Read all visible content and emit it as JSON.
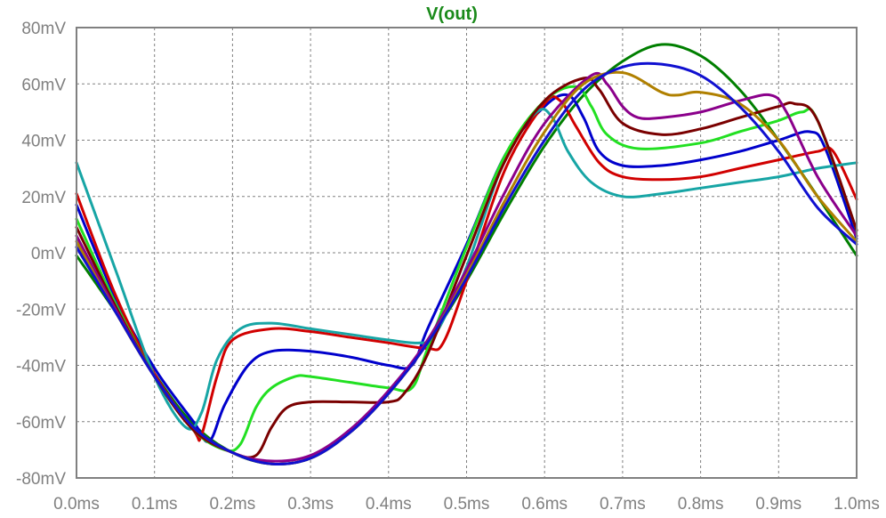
{
  "chart_data": {
    "type": "line",
    "title": "V(out)",
    "title_color": "#1a8a1a",
    "xlabel": "",
    "ylabel": "",
    "xlim": [
      0.0,
      1.0
    ],
    "ylim": [
      -80,
      80
    ],
    "x_ticks": [
      {
        "value": 0.0,
        "label": "0.0ms"
      },
      {
        "value": 0.1,
        "label": "0.1ms"
      },
      {
        "value": 0.2,
        "label": "0.2ms"
      },
      {
        "value": 0.3,
        "label": "0.3ms"
      },
      {
        "value": 0.4,
        "label": "0.4ms"
      },
      {
        "value": 0.5,
        "label": "0.5ms"
      },
      {
        "value": 0.6,
        "label": "0.6ms"
      },
      {
        "value": 0.7,
        "label": "0.7ms"
      },
      {
        "value": 0.8,
        "label": "0.8ms"
      },
      {
        "value": 0.9,
        "label": "0.9ms"
      },
      {
        "value": 1.0,
        "label": "1.0ms"
      }
    ],
    "y_ticks": [
      {
        "value": 80,
        "label": "80mV"
      },
      {
        "value": 60,
        "label": "60mV"
      },
      {
        "value": 40,
        "label": "40mV"
      },
      {
        "value": 20,
        "label": "20mV"
      },
      {
        "value": 0,
        "label": "0mV"
      },
      {
        "value": -20,
        "label": "-20mV"
      },
      {
        "value": -40,
        "label": "-40mV"
      },
      {
        "value": -60,
        "label": "-60mV"
      },
      {
        "value": -80,
        "label": "-80mV"
      }
    ],
    "grid": true,
    "series": [
      {
        "color": "#007f00",
        "x": [
          0.0,
          0.05,
          0.1,
          0.15,
          0.2,
          0.25,
          0.3,
          0.35,
          0.4,
          0.45,
          0.5,
          0.55,
          0.6,
          0.65,
          0.7,
          0.75,
          0.8,
          0.85,
          0.9,
          0.95,
          1.0
        ],
        "y": [
          -1,
          -21,
          -43,
          -61,
          -71,
          -75,
          -73,
          -64,
          -50,
          -32,
          -10,
          15,
          38,
          56,
          68,
          74,
          70,
          58,
          40,
          20,
          -1
        ]
      },
      {
        "color": "#0000cc",
        "x": [
          0.0,
          0.05,
          0.1,
          0.15,
          0.17,
          0.19,
          0.22,
          0.25,
          0.3,
          0.35,
          0.4,
          0.43,
          0.45,
          0.5,
          0.55,
          0.6,
          0.63,
          0.65,
          0.67,
          0.7,
          0.75,
          0.8,
          0.85,
          0.9,
          0.94,
          0.96,
          1.0
        ],
        "y": [
          17,
          -16,
          -41,
          -60,
          -67,
          -54,
          -40,
          -35,
          -35,
          -37,
          -40,
          -40,
          -27,
          3,
          35,
          52,
          56,
          48,
          36,
          31,
          31,
          33,
          36,
          40,
          43,
          37,
          5
        ]
      },
      {
        "color": "#d10000",
        "x": [
          0.0,
          0.05,
          0.1,
          0.15,
          0.16,
          0.18,
          0.2,
          0.25,
          0.3,
          0.35,
          0.4,
          0.45,
          0.47,
          0.5,
          0.55,
          0.6,
          0.62,
          0.64,
          0.67,
          0.7,
          0.75,
          0.8,
          0.85,
          0.9,
          0.95,
          0.97,
          1.0
        ],
        "y": [
          21,
          -15,
          -43,
          -63,
          -65,
          -44,
          -31,
          -27,
          -28,
          -30,
          -32,
          -34,
          -32,
          -10,
          30,
          53,
          54,
          45,
          32,
          27,
          26,
          27,
          30,
          33,
          36,
          36,
          19
        ]
      },
      {
        "color": "#17a5a5",
        "x": [
          0.0,
          0.05,
          0.1,
          0.14,
          0.16,
          0.18,
          0.21,
          0.25,
          0.3,
          0.35,
          0.4,
          0.44,
          0.46,
          0.5,
          0.55,
          0.59,
          0.61,
          0.63,
          0.66,
          0.7,
          0.75,
          0.8,
          0.85,
          0.9,
          0.95,
          1.0
        ],
        "y": [
          32,
          -6,
          -44,
          -62,
          -57,
          -38,
          -27,
          -25,
          -27,
          -29,
          -31,
          -32,
          -29,
          -5,
          34,
          50,
          48,
          36,
          25,
          20,
          21,
          23,
          25,
          27,
          30,
          32
        ]
      },
      {
        "color": "#22e022",
        "x": [
          0.0,
          0.05,
          0.1,
          0.15,
          0.19,
          0.21,
          0.23,
          0.25,
          0.28,
          0.3,
          0.35,
          0.4,
          0.43,
          0.45,
          0.5,
          0.55,
          0.6,
          0.64,
          0.66,
          0.68,
          0.72,
          0.8,
          0.85,
          0.9,
          0.93,
          0.95,
          1.0
        ],
        "y": [
          12,
          -18,
          -44,
          -63,
          -70,
          -68,
          -55,
          -48,
          -44,
          -44,
          -46,
          -48,
          -48,
          -34,
          2,
          35,
          54,
          59,
          52,
          42,
          37,
          39,
          43,
          47,
          50,
          47,
          8
        ]
      },
      {
        "color": "#7a0000",
        "x": [
          0.0,
          0.05,
          0.1,
          0.15,
          0.2,
          0.23,
          0.25,
          0.27,
          0.3,
          0.35,
          0.4,
          0.42,
          0.45,
          0.5,
          0.55,
          0.6,
          0.65,
          0.67,
          0.7,
          0.75,
          0.8,
          0.85,
          0.9,
          0.92,
          0.95,
          1.0
        ],
        "y": [
          9,
          -19,
          -44,
          -63,
          -71,
          -72,
          -62,
          -55,
          -53,
          -53,
          -53,
          -50,
          -36,
          -1,
          33,
          54,
          62,
          58,
          46,
          42,
          44,
          48,
          52,
          53,
          47,
          8
        ]
      },
      {
        "color": "#8b008b",
        "x": [
          0.0,
          0.05,
          0.1,
          0.15,
          0.2,
          0.25,
          0.3,
          0.35,
          0.4,
          0.45,
          0.5,
          0.55,
          0.6,
          0.66,
          0.68,
          0.7,
          0.72,
          0.75,
          0.8,
          0.85,
          0.89,
          0.91,
          0.95,
          1.0
        ],
        "y": [
          6,
          -20,
          -44,
          -62,
          -71,
          -74,
          -72,
          -63,
          -49,
          -31,
          -6,
          22,
          46,
          63,
          60,
          52,
          48,
          48,
          50,
          54,
          56,
          50,
          27,
          6
        ]
      },
      {
        "color": "#b08000",
        "x": [
          0.0,
          0.05,
          0.1,
          0.15,
          0.2,
          0.25,
          0.3,
          0.35,
          0.4,
          0.45,
          0.5,
          0.55,
          0.6,
          0.65,
          0.7,
          0.75,
          0.77,
          0.8,
          0.85,
          0.9,
          0.95,
          1.0
        ],
        "y": [
          4,
          -21,
          -44,
          -62,
          -71,
          -75,
          -73,
          -64,
          -50,
          -32,
          -8,
          19,
          43,
          60,
          64,
          57,
          56,
          57,
          53,
          40,
          20,
          4
        ]
      },
      {
        "color": "#1010d0",
        "x": [
          0.0,
          0.05,
          0.1,
          0.15,
          0.2,
          0.25,
          0.3,
          0.35,
          0.4,
          0.45,
          0.5,
          0.55,
          0.6,
          0.65,
          0.7,
          0.75,
          0.8,
          0.85,
          0.9,
          0.95,
          1.0
        ],
        "y": [
          2,
          -21,
          -44,
          -62,
          -71,
          -75,
          -73,
          -64,
          -50,
          -32,
          -9,
          17,
          40,
          58,
          66,
          67,
          63,
          52,
          36,
          16,
          3
        ]
      }
    ]
  }
}
